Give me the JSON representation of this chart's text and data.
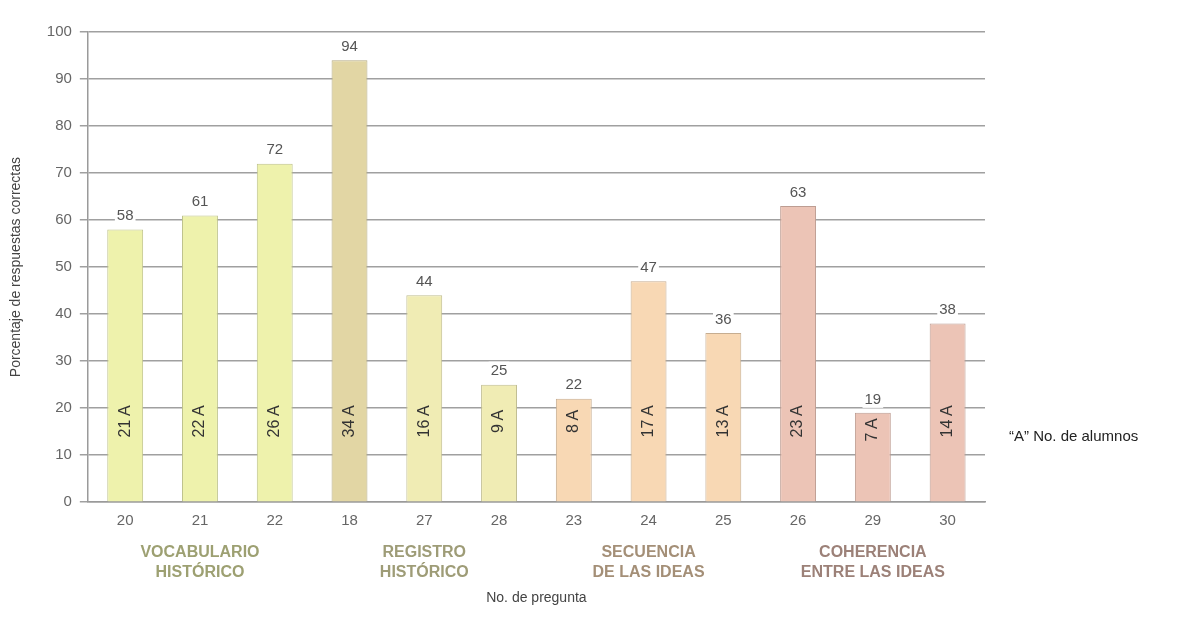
{
  "chart_data": {
    "type": "bar",
    "xlabel": "No. de pregunta",
    "ylabel": "Porcentaje de respuestas correctas",
    "categories": [
      "20",
      "21",
      "22",
      "18",
      "27",
      "28",
      "23",
      "24",
      "25",
      "26",
      "29",
      "30"
    ],
    "values": [
      58,
      61,
      72,
      94,
      44,
      25,
      22,
      47,
      36,
      63,
      19,
      38
    ],
    "colors": [
      "#eef2ac",
      "#eef2ac",
      "#eef2ac",
      "#e2d6a4",
      "#f0ecb4",
      "#f0ecb4",
      "#f8d8b4",
      "#f8d8b4",
      "#f8d8b4",
      "#ecc4b6",
      "#ecc4b6",
      "#ecc4b6"
    ],
    "ylim": [
      0,
      100
    ],
    "yticks": [
      0,
      10,
      20,
      30,
      40,
      50,
      60,
      70,
      80,
      90,
      100
    ],
    "grid": "y",
    "data_labels": true,
    "annotations": [
      "21 A",
      "22 A",
      "26 A",
      "34 A",
      "16 A",
      "9 A",
      "8 A",
      "17 A",
      "13 A",
      "23 A",
      "7 A",
      "14 A",
      "VOCABULARIO\nHISTÓRICO",
      "REGISTRO\nHISTÓRICO",
      "SECUENCIA\nDE LAS IDEAS",
      "COHERENCIA\nENTRE LAS IDEAS",
      "“A” No. de alumnos"
    ]
  }
}
